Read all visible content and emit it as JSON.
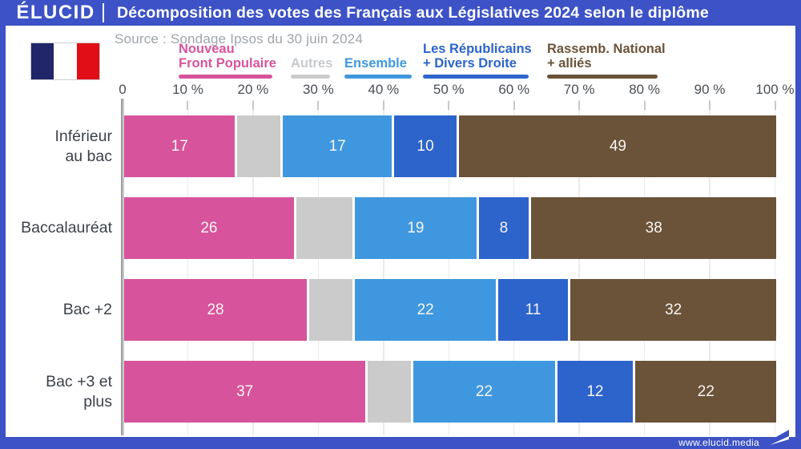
{
  "header": {
    "logo": "ÉLUCID",
    "title": "Décomposition des votes des Français aux Législatives 2024 selon le diplôme"
  },
  "source": "Source : Sondage Ipsos du 30 juin 2024",
  "footer": {
    "url": "www.elucid.media"
  },
  "colors": {
    "frame_blue": "#3C52C6",
    "axis_text": "#4A4F55",
    "category_text": "#3C4149",
    "source_text": "#A0A5AA",
    "value_text": "#F8F4F1",
    "gridline": "#EAEBED",
    "tick": "#C6C9CC",
    "flag_navy": "#21266A",
    "flag_white": "#FFFFFF",
    "flag_red": "#E10E17"
  },
  "chart_data": {
    "type": "bar",
    "variant": "horizontal-stacked",
    "title": "Décomposition des votes des Français aux Législatives 2024 selon le diplôme",
    "source": "Source : Sondage Ipsos du 30 juin 2024",
    "xlim": [
      0,
      100
    ],
    "x_tick_values": [
      0,
      10,
      20,
      30,
      40,
      50,
      60,
      70,
      80,
      90,
      100
    ],
    "x_tick_labels": [
      "0",
      "10 %",
      "20 %",
      "30 %",
      "40 %",
      "50 %",
      "60 %",
      "70 %",
      "80 %",
      "90 %",
      "100 %"
    ],
    "grid": true,
    "legend_position": "top",
    "categories": [
      "Inférieur au bac",
      "Baccalauréat",
      "Bac +2",
      "Bac +3 et plus"
    ],
    "category_label_lines": [
      [
        "Inférieur",
        "au bac"
      ],
      [
        "Baccalauréat"
      ],
      [
        "Bac +2"
      ],
      [
        "Bac +3 et",
        "plus"
      ]
    ],
    "series": [
      {
        "name": "Nouveau Front Populaire",
        "label_lines": [
          "Nouveau",
          "Front Populaire"
        ],
        "color": "#D7549C",
        "values": [
          17,
          26,
          28,
          37
        ],
        "show_value_labels": true
      },
      {
        "name": "Autres",
        "label_lines": [
          "Autres"
        ],
        "color": "#CBCBCB",
        "legend_text_color": "#C6CACD",
        "values": [
          7,
          9,
          7,
          7
        ],
        "show_value_labels": false
      },
      {
        "name": "Ensemble",
        "label_lines": [
          "Ensemble"
        ],
        "color": "#3F98DF",
        "values": [
          17,
          19,
          22,
          22
        ],
        "show_value_labels": true
      },
      {
        "name": "Les Républicains + Divers Droite",
        "label_lines": [
          "Les Républicains",
          "+ Divers Droite"
        ],
        "color": "#2C64CC",
        "values": [
          10,
          8,
          11,
          12
        ],
        "show_value_labels": true
      },
      {
        "name": "Rassemb. National + alliés",
        "label_lines": [
          "Rassemb. National",
          "+ alliés"
        ],
        "color": "#6B5339",
        "values": [
          49,
          38,
          32,
          22
        ],
        "show_value_labels": true
      }
    ]
  }
}
